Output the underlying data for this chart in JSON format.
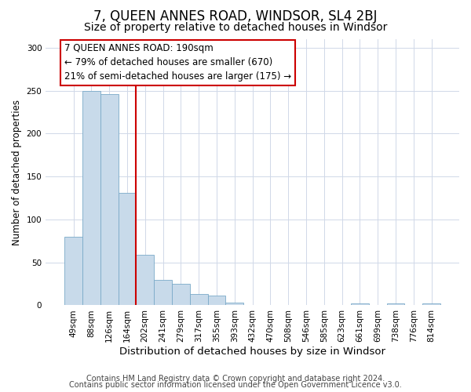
{
  "title": "7, QUEEN ANNES ROAD, WINDSOR, SL4 2BJ",
  "subtitle": "Size of property relative to detached houses in Windsor",
  "xlabel": "Distribution of detached houses by size in Windsor",
  "ylabel": "Number of detached properties",
  "categories": [
    "49sqm",
    "88sqm",
    "126sqm",
    "164sqm",
    "202sqm",
    "241sqm",
    "279sqm",
    "317sqm",
    "355sqm",
    "393sqm",
    "432sqm",
    "470sqm",
    "508sqm",
    "546sqm",
    "585sqm",
    "623sqm",
    "661sqm",
    "699sqm",
    "738sqm",
    "776sqm",
    "814sqm"
  ],
  "values": [
    80,
    250,
    246,
    131,
    59,
    30,
    25,
    13,
    11,
    3,
    0,
    0,
    0,
    0,
    0,
    0,
    2,
    0,
    2,
    0,
    2
  ],
  "bar_color": "#c8daea",
  "bar_edgecolor": "#7aaac8",
  "vline_x_index": 4,
  "vline_color": "#cc0000",
  "annotation_box_text": "7 QUEEN ANNES ROAD: 190sqm\n← 79% of detached houses are smaller (670)\n21% of semi-detached houses are larger (175) →",
  "ylim": [
    0,
    310
  ],
  "yticks": [
    0,
    50,
    100,
    150,
    200,
    250,
    300
  ],
  "footer_line1": "Contains HM Land Registry data © Crown copyright and database right 2024.",
  "footer_line2": "Contains public sector information licensed under the Open Government Licence v3.0.",
  "background_color": "#ffffff",
  "plot_bg_color": "#ffffff",
  "grid_color": "#d0d8e8",
  "title_fontsize": 12,
  "subtitle_fontsize": 10,
  "xlabel_fontsize": 9.5,
  "ylabel_fontsize": 8.5,
  "tick_fontsize": 7.5,
  "annotation_fontsize": 8.5,
  "footer_fontsize": 7
}
